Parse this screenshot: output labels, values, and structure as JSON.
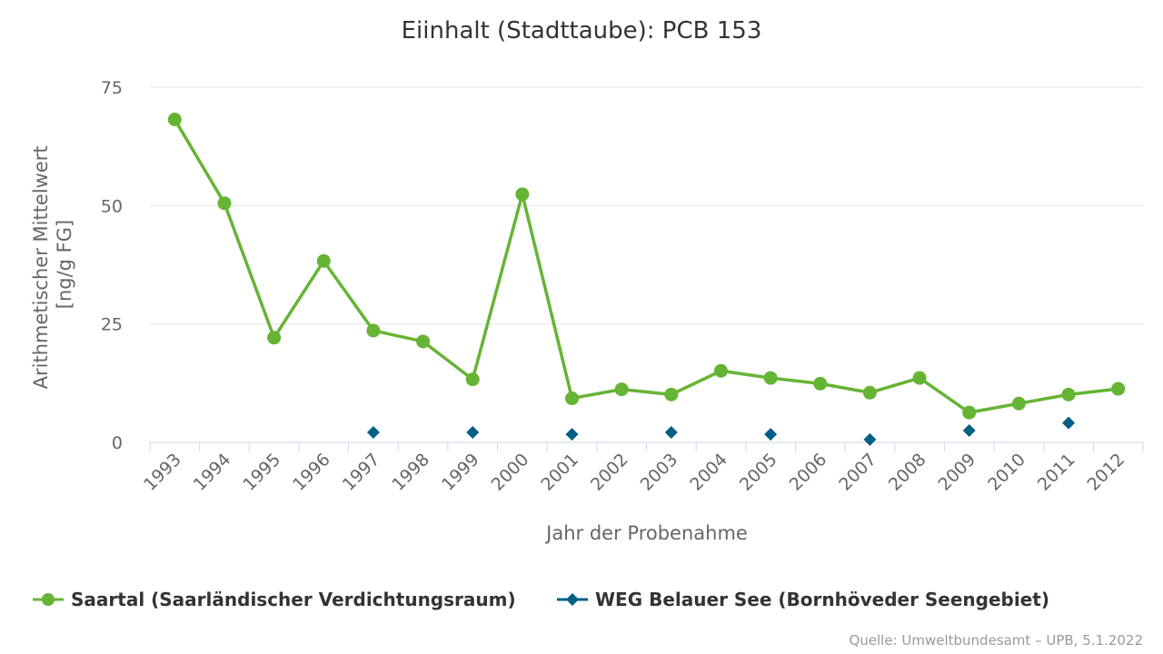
{
  "chart_data": {
    "type": "line",
    "title": "Eiinhalt (Stadttaube): PCB 153",
    "xlabel": "Jahr der Probenahme",
    "ylabel_lines": [
      "Arithmetischer Mittelwert",
      "[ng/g FG]"
    ],
    "categories": [
      "1993",
      "1994",
      "1995",
      "1996",
      "1997",
      "1998",
      "1999",
      "2000",
      "2001",
      "2002",
      "2003",
      "2004",
      "2005",
      "2006",
      "2007",
      "2008",
      "2009",
      "2010",
      "2011",
      "2012"
    ],
    "ylim": [
      0,
      75
    ],
    "yticks": [
      0,
      25,
      50,
      75
    ],
    "grid": true,
    "legend_position": "bottom",
    "series": [
      {
        "name": "Saartal (Saarländischer Verdichtungsraum)",
        "color": "#66b434",
        "marker": "circle",
        "values": [
          68.2,
          50.5,
          22.1,
          38.3,
          23.6,
          21.3,
          13.3,
          52.4,
          9.3,
          11.2,
          10.1,
          15.1,
          13.6,
          12.4,
          10.5,
          13.6,
          6.3,
          8.2,
          10.1,
          11.3
        ]
      },
      {
        "name": "WEG Belauer See (Bornhöveder Seengebiet)",
        "color": "#005f85",
        "marker": "diamond",
        "values": [
          null,
          null,
          null,
          null,
          2.1,
          null,
          2.1,
          null,
          1.7,
          null,
          2.1,
          null,
          1.7,
          null,
          0.6,
          null,
          2.5,
          null,
          4.1,
          null
        ]
      }
    ]
  },
  "source": "Quelle: Umweltbundesamt – UPB, 5.1.2022"
}
